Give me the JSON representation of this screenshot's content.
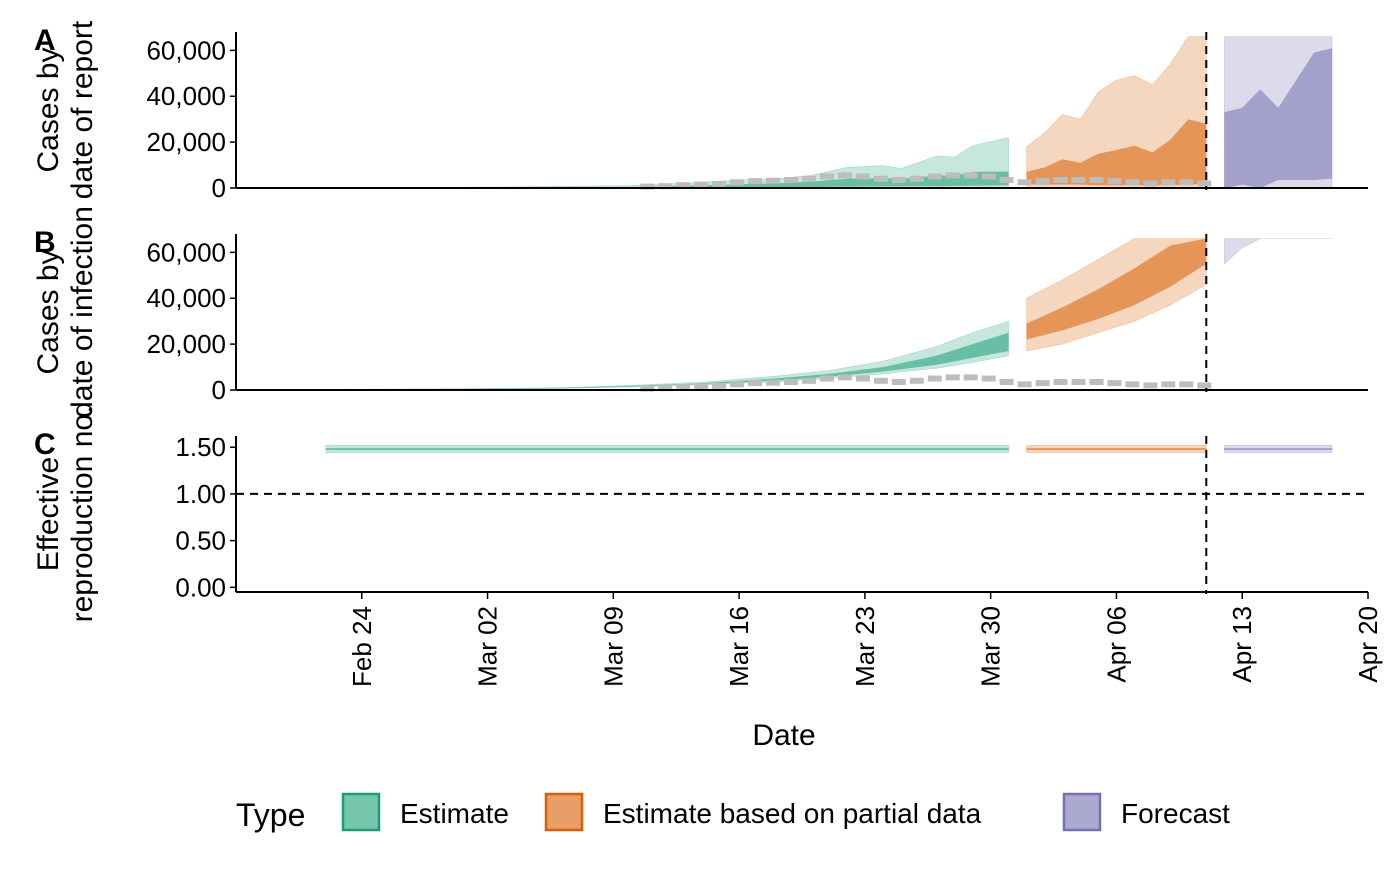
{
  "colors": {
    "estimate": "#1b9e77",
    "partial": "#d95f02",
    "forecast": "#7570b3",
    "reported": "#bdbdbd",
    "line": "#000000"
  },
  "legend": {
    "title": "Type",
    "items": [
      {
        "key": "estimate",
        "label": "Estimate"
      },
      {
        "key": "partial",
        "label": "Estimate based on partial data"
      },
      {
        "key": "forecast",
        "label": "Forecast"
      }
    ]
  },
  "chart_data": [
    {
      "panel_tag": "A",
      "type": "area",
      "ylabel_lines": [
        "Cases by",
        "date of report"
      ],
      "ylim": [
        0,
        68000
      ],
      "yticks": [
        0,
        20000,
        40000,
        60000
      ],
      "ytick_labels": [
        "0",
        "20,000",
        "40,000",
        "60,000"
      ],
      "xlim": [
        "2020-02-17",
        "2020-04-20"
      ],
      "vline": "2020-04-11",
      "series": [
        {
          "key": "estimate",
          "x": [
            "2020-02-22",
            "2020-02-26",
            "2020-03-02",
            "2020-03-06",
            "2020-03-10",
            "2020-03-13",
            "2020-03-16",
            "2020-03-18",
            "2020-03-20",
            "2020-03-22",
            "2020-03-24",
            "2020-03-25",
            "2020-03-27",
            "2020-03-28",
            "2020-03-29",
            "2020-03-31"
          ],
          "upper90": [
            100,
            200,
            400,
            700,
            1100,
            2100,
            3500,
            4000,
            5500,
            9000,
            9800,
            8500,
            14000,
            13500,
            18500,
            22000
          ],
          "lower90": [
            0,
            0,
            0,
            0,
            0,
            0,
            0,
            0,
            0,
            0,
            0,
            0,
            0,
            0,
            0,
            0
          ],
          "upper50": [
            50,
            100,
            200,
            300,
            500,
            1000,
            1600,
            2000,
            2800,
            4000,
            4300,
            4000,
            5300,
            5500,
            7000,
            7200
          ],
          "lower50": [
            0,
            0,
            0,
            0,
            100,
            200,
            300,
            400,
            500,
            600,
            700,
            700,
            800,
            900,
            1000,
            1200
          ]
        },
        {
          "key": "partial",
          "x": [
            "2020-04-01",
            "2020-04-02",
            "2020-04-03",
            "2020-04-04",
            "2020-04-05",
            "2020-04-06",
            "2020-04-07",
            "2020-04-08",
            "2020-04-09",
            "2020-04-10",
            "2020-04-11"
          ],
          "upper90": [
            18000,
            24000,
            32000,
            30000,
            42000,
            47000,
            49000,
            45000,
            54000,
            66000,
            66000
          ],
          "lower90": [
            0,
            0,
            0,
            0,
            0,
            0,
            0,
            0,
            0,
            0,
            0
          ],
          "upper50": [
            7000,
            9000,
            12500,
            11000,
            15000,
            16500,
            18500,
            15500,
            21000,
            30000,
            28000
          ],
          "lower50": [
            1500,
            1500,
            1500,
            1500,
            1200,
            1200,
            1200,
            1200,
            1200,
            1500,
            2000
          ]
        },
        {
          "key": "forecast",
          "x": [
            "2020-04-12",
            "2020-04-13",
            "2020-04-14",
            "2020-04-15",
            "2020-04-16",
            "2020-04-17",
            "2020-04-18"
          ],
          "upper90": [
            66000,
            66000,
            66000,
            66000,
            66000,
            66000,
            66000
          ],
          "lower90": [
            0,
            0,
            0,
            0,
            0,
            0,
            0
          ],
          "upper50": [
            33000,
            35000,
            43000,
            35000,
            47000,
            59000,
            61000
          ],
          "lower50": [
            0,
            1500,
            0,
            3500,
            3500,
            3500,
            4000
          ]
        }
      ],
      "reported": {
        "x": [
          "2020-03-11",
          "2020-03-12",
          "2020-03-13",
          "2020-03-14",
          "2020-03-15",
          "2020-03-16",
          "2020-03-17",
          "2020-03-18",
          "2020-03-19",
          "2020-03-20",
          "2020-03-21",
          "2020-03-22",
          "2020-03-23",
          "2020-03-24",
          "2020-03-25",
          "2020-03-26",
          "2020-03-27",
          "2020-03-28",
          "2020-03-29",
          "2020-03-30",
          "2020-03-31",
          "2020-04-01",
          "2020-04-02",
          "2020-04-03",
          "2020-04-04",
          "2020-04-05",
          "2020-04-06",
          "2020-04-07",
          "2020-04-08",
          "2020-04-09",
          "2020-04-10",
          "2020-04-11"
        ],
        "values": [
          600,
          800,
          1200,
          1500,
          1800,
          2500,
          3000,
          3200,
          3500,
          4000,
          5000,
          5500,
          5000,
          4000,
          3500,
          4000,
          5000,
          5500,
          5500,
          5000,
          3500,
          2500,
          3000,
          3500,
          3500,
          3500,
          3000,
          2500,
          2000,
          2500,
          2500,
          2000
        ]
      }
    },
    {
      "panel_tag": "B",
      "type": "area",
      "ylabel_lines": [
        "Cases by",
        "date of infection"
      ],
      "ylim": [
        0,
        68000
      ],
      "yticks": [
        0,
        20000,
        40000,
        60000
      ],
      "ytick_labels": [
        "0",
        "20,000",
        "40,000",
        "60,000"
      ],
      "xlim": [
        "2020-02-17",
        "2020-04-20"
      ],
      "vline": "2020-04-11",
      "series": [
        {
          "key": "estimate",
          "x": [
            "2020-02-22",
            "2020-03-01",
            "2020-03-06",
            "2020-03-10",
            "2020-03-14",
            "2020-03-18",
            "2020-03-21",
            "2020-03-24",
            "2020-03-27",
            "2020-03-29",
            "2020-03-31"
          ],
          "upper90": [
            300,
            600,
            1000,
            2000,
            3500,
            6000,
            8500,
            12500,
            19000,
            25000,
            30000
          ],
          "lower90": [
            100,
            300,
            700,
            1300,
            2300,
            3500,
            5000,
            7000,
            9500,
            12000,
            15000
          ],
          "upper50": [
            250,
            500,
            900,
            1800,
            3000,
            5000,
            7000,
            10000,
            15000,
            20000,
            25000
          ],
          "lower50": [
            150,
            400,
            800,
            1500,
            2600,
            4000,
            5800,
            8000,
            11000,
            14000,
            17000
          ]
        },
        {
          "key": "partial",
          "x": [
            "2020-04-01",
            "2020-04-03",
            "2020-04-05",
            "2020-04-07",
            "2020-04-09",
            "2020-04-11"
          ],
          "upper90": [
            40000,
            48000,
            57000,
            66000,
            66000,
            66000
          ],
          "lower90": [
            17000,
            20000,
            25000,
            30000,
            37000,
            46000
          ],
          "upper50": [
            29000,
            36000,
            44000,
            53000,
            63000,
            66000
          ],
          "lower50": [
            22000,
            26000,
            31000,
            37000,
            45000,
            55000
          ]
        },
        {
          "key": "forecast",
          "x": [
            "2020-04-12",
            "2020-04-13",
            "2020-04-14",
            "2020-04-15",
            "2020-04-16",
            "2020-04-17",
            "2020-04-18"
          ],
          "upper90": [
            66000,
            66000,
            66000,
            66000,
            66000,
            66000,
            66000
          ],
          "lower90": [
            55000,
            62000,
            66000,
            66000,
            66000,
            66000,
            66000
          ],
          "upper50": [
            66000,
            66000,
            66000,
            66000,
            66000,
            66000,
            66000
          ],
          "lower50": [
            66000,
            66000,
            66000,
            66000,
            66000,
            66000,
            66000
          ]
        }
      ],
      "reported": {
        "x": [
          "2020-03-11",
          "2020-03-12",
          "2020-03-13",
          "2020-03-14",
          "2020-03-15",
          "2020-03-16",
          "2020-03-17",
          "2020-03-18",
          "2020-03-19",
          "2020-03-20",
          "2020-03-21",
          "2020-03-22",
          "2020-03-23",
          "2020-03-24",
          "2020-03-25",
          "2020-03-26",
          "2020-03-27",
          "2020-03-28",
          "2020-03-29",
          "2020-03-30",
          "2020-03-31",
          "2020-04-01",
          "2020-04-02",
          "2020-04-03",
          "2020-04-04",
          "2020-04-05",
          "2020-04-06",
          "2020-04-07",
          "2020-04-08",
          "2020-04-09",
          "2020-04-10",
          "2020-04-11"
        ],
        "values": [
          600,
          800,
          1200,
          1500,
          1800,
          2500,
          3000,
          3200,
          3500,
          4000,
          5000,
          5500,
          5000,
          4000,
          3500,
          4000,
          5000,
          5500,
          5500,
          5000,
          3500,
          2500,
          3000,
          3500,
          3500,
          3500,
          3000,
          2500,
          2000,
          2500,
          2500,
          2000
        ]
      }
    },
    {
      "panel_tag": "C",
      "type": "area",
      "ylabel_lines": [
        "Effective",
        "reproduction no."
      ],
      "ylim": [
        -0.05,
        1.62
      ],
      "yticks": [
        0,
        0.5,
        1.0,
        1.5
      ],
      "ytick_labels": [
        "0.00",
        "0.50",
        "1.00",
        "1.50"
      ],
      "xlim": [
        "2020-02-17",
        "2020-04-20"
      ],
      "vline": "2020-04-11",
      "hline": 1.0,
      "xticks": [
        "2020-02-24",
        "2020-03-02",
        "2020-03-09",
        "2020-03-16",
        "2020-03-23",
        "2020-03-30",
        "2020-04-06",
        "2020-04-13",
        "2020-04-20"
      ],
      "xtick_labels": [
        "Feb 24",
        "Mar 02",
        "Mar 09",
        "Mar 16",
        "Mar 23",
        "Mar 30",
        "Apr 06",
        "Apr 13",
        "Apr 20"
      ],
      "xlabel": "Date",
      "series": [
        {
          "key": "estimate",
          "x": [
            "2020-02-22",
            "2020-03-31"
          ],
          "upper90": [
            1.52,
            1.52
          ],
          "lower90": [
            1.44,
            1.44
          ],
          "upper50": [
            1.49,
            1.49
          ],
          "lower50": [
            1.47,
            1.47
          ]
        },
        {
          "key": "partial",
          "x": [
            "2020-04-01",
            "2020-04-11"
          ],
          "upper90": [
            1.52,
            1.52
          ],
          "lower90": [
            1.44,
            1.44
          ],
          "upper50": [
            1.49,
            1.49
          ],
          "lower50": [
            1.47,
            1.47
          ]
        },
        {
          "key": "forecast",
          "x": [
            "2020-04-12",
            "2020-04-18"
          ],
          "upper90": [
            1.52,
            1.52
          ],
          "lower90": [
            1.44,
            1.44
          ],
          "upper50": [
            1.49,
            1.49
          ],
          "lower50": [
            1.47,
            1.47
          ]
        }
      ]
    }
  ]
}
